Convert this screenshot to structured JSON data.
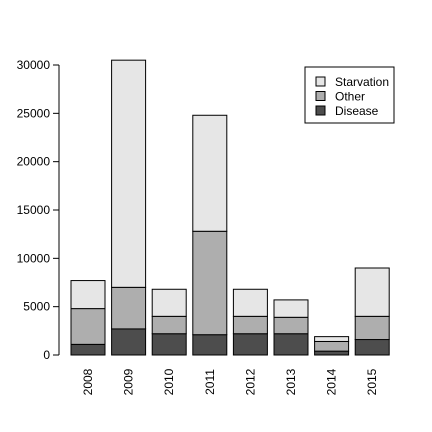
{
  "chart_data": {
    "type": "bar",
    "stacked": true,
    "categories": [
      "2008",
      "2009",
      "2010",
      "2011",
      "2012",
      "2013",
      "2014",
      "2015"
    ],
    "series": [
      {
        "name": "Disease",
        "color": "#4d4d4d",
        "values": [
          1100,
          2700,
          2200,
          2100,
          2200,
          2200,
          400,
          1600
        ]
      },
      {
        "name": "Other",
        "color": "#aeaeae",
        "values": [
          3700,
          4300,
          1800,
          10700,
          1800,
          1700,
          1000,
          2400
        ]
      },
      {
        "name": "Starvation",
        "color": "#e6e6e6",
        "values": [
          2900,
          23500,
          2800,
          12000,
          2800,
          1800,
          500,
          5000
        ]
      }
    ],
    "ylim": [
      0,
      30000
    ],
    "yticks": [
      0,
      5000,
      10000,
      15000,
      20000,
      25000,
      30000
    ],
    "legend": {
      "position": "top-right",
      "entries": [
        "Starvation",
        "Other",
        "Disease"
      ]
    },
    "title": "",
    "xlabel": "",
    "ylabel": ""
  }
}
